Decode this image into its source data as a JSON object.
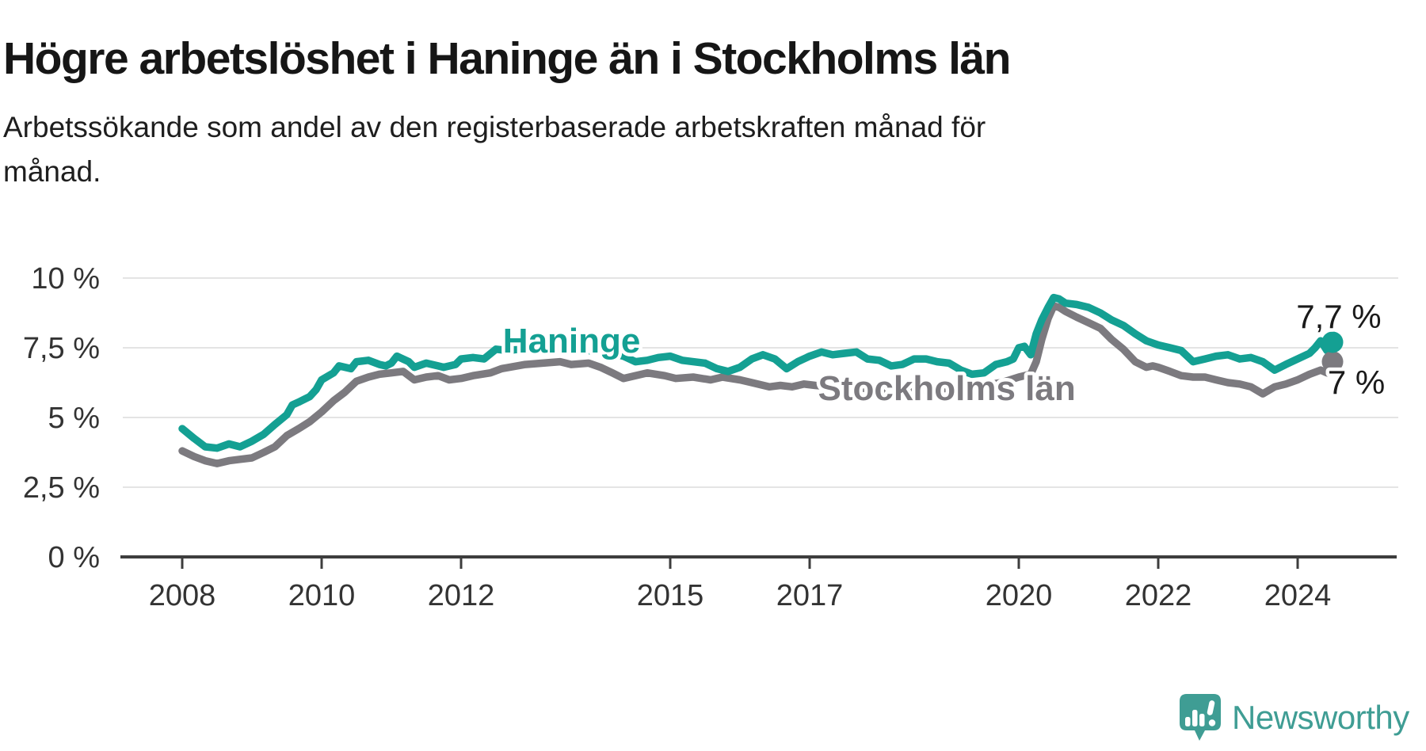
{
  "header": {
    "title": "Högre arbetslöshet i Haninge än i Stockholms län",
    "subtitle_line1": "Arbetssökande som andel av den registerbaserade arbetskraften månad för",
    "subtitle_line2": "månad."
  },
  "branding": {
    "logo_text": "Newsworthy"
  },
  "colors": {
    "haninge": "#14A093",
    "stockholm": "#7C7A7F",
    "annotation": "#1A1A1A",
    "axis": "#3D3D3D",
    "grid": "#E4E4E4",
    "tick_text": "#333333",
    "logo": "#3F9D94"
  },
  "chart_data": {
    "type": "line",
    "title": "Högre arbetslöshet i Haninge än i Stockholms län",
    "subtitle": "Arbetssökande som andel av den registerbaserade arbetskraften månad för månad.",
    "unit": "%",
    "x_axis": {
      "ticks": [
        2008,
        2010,
        2012,
        2015,
        2017,
        2020,
        2022,
        2024
      ],
      "range": [
        2007.1,
        2025.4
      ],
      "grid": false
    },
    "y_axis": {
      "range": [
        0,
        10.5
      ],
      "grid": true,
      "ticks": [
        {
          "value": 0,
          "label": "0 %"
        },
        {
          "value": 2.5,
          "label": "2,5 %"
        },
        {
          "value": 5,
          "label": "5 %"
        },
        {
          "value": 7.5,
          "label": "7,5 %"
        },
        {
          "value": 10,
          "label": "10 %"
        }
      ]
    },
    "legend": "inline-labels",
    "series": [
      {
        "name": "Haninge",
        "color_key": "haninge",
        "end_value_label": "7,7 %",
        "end_value": 7.7,
        "points": [
          [
            2008.0,
            4.6
          ],
          [
            2008.17,
            4.25
          ],
          [
            2008.33,
            3.95
          ],
          [
            2008.5,
            3.9
          ],
          [
            2008.67,
            4.05
          ],
          [
            2008.83,
            3.95
          ],
          [
            2009.0,
            4.15
          ],
          [
            2009.17,
            4.4
          ],
          [
            2009.33,
            4.75
          ],
          [
            2009.5,
            5.1
          ],
          [
            2009.58,
            5.45
          ],
          [
            2009.67,
            5.55
          ],
          [
            2009.83,
            5.75
          ],
          [
            2009.92,
            6.0
          ],
          [
            2010.0,
            6.35
          ],
          [
            2010.17,
            6.6
          ],
          [
            2010.25,
            6.85
          ],
          [
            2010.42,
            6.75
          ],
          [
            2010.5,
            7.0
          ],
          [
            2010.67,
            7.05
          ],
          [
            2010.83,
            6.9
          ],
          [
            2010.92,
            6.85
          ],
          [
            2011.0,
            6.95
          ],
          [
            2011.08,
            7.2
          ],
          [
            2011.25,
            7.0
          ],
          [
            2011.33,
            6.8
          ],
          [
            2011.5,
            6.95
          ],
          [
            2011.67,
            6.85
          ],
          [
            2011.75,
            6.8
          ],
          [
            2011.92,
            6.9
          ],
          [
            2012.0,
            7.1
          ],
          [
            2012.17,
            7.15
          ],
          [
            2012.33,
            7.1
          ],
          [
            2012.5,
            7.45
          ],
          [
            2012.67,
            7.4
          ],
          [
            2012.83,
            7.45
          ],
          [
            2013.0,
            7.4
          ],
          [
            2013.17,
            7.45
          ],
          [
            2013.33,
            7.5
          ],
          [
            2013.5,
            7.5
          ],
          [
            2013.67,
            7.45
          ],
          [
            2013.83,
            7.4
          ],
          [
            2014.0,
            7.35
          ],
          [
            2014.17,
            7.3
          ],
          [
            2014.33,
            7.2
          ],
          [
            2014.5,
            7.0
          ],
          [
            2014.67,
            7.05
          ],
          [
            2014.83,
            7.15
          ],
          [
            2015.0,
            7.2
          ],
          [
            2015.17,
            7.05
          ],
          [
            2015.33,
            7.0
          ],
          [
            2015.5,
            6.95
          ],
          [
            2015.67,
            6.75
          ],
          [
            2015.83,
            6.65
          ],
          [
            2016.0,
            6.8
          ],
          [
            2016.17,
            7.1
          ],
          [
            2016.33,
            7.25
          ],
          [
            2016.5,
            7.1
          ],
          [
            2016.67,
            6.75
          ],
          [
            2016.83,
            7.0
          ],
          [
            2017.0,
            7.2
          ],
          [
            2017.17,
            7.35
          ],
          [
            2017.33,
            7.25
          ],
          [
            2017.5,
            7.3
          ],
          [
            2017.67,
            7.35
          ],
          [
            2017.83,
            7.1
          ],
          [
            2018.0,
            7.05
          ],
          [
            2018.17,
            6.85
          ],
          [
            2018.33,
            6.9
          ],
          [
            2018.5,
            7.1
          ],
          [
            2018.67,
            7.1
          ],
          [
            2018.83,
            7.0
          ],
          [
            2019.0,
            6.95
          ],
          [
            2019.17,
            6.7
          ],
          [
            2019.33,
            6.55
          ],
          [
            2019.5,
            6.6
          ],
          [
            2019.67,
            6.9
          ],
          [
            2019.83,
            7.0
          ],
          [
            2019.92,
            7.1
          ],
          [
            2020.0,
            7.5
          ],
          [
            2020.08,
            7.55
          ],
          [
            2020.17,
            7.25
          ],
          [
            2020.25,
            8.0
          ],
          [
            2020.33,
            8.5
          ],
          [
            2020.42,
            8.95
          ],
          [
            2020.5,
            9.3
          ],
          [
            2020.58,
            9.25
          ],
          [
            2020.67,
            9.1
          ],
          [
            2020.83,
            9.05
          ],
          [
            2021.0,
            8.95
          ],
          [
            2021.17,
            8.75
          ],
          [
            2021.33,
            8.5
          ],
          [
            2021.5,
            8.3
          ],
          [
            2021.67,
            8.0
          ],
          [
            2021.83,
            7.75
          ],
          [
            2022.0,
            7.6
          ],
          [
            2022.17,
            7.5
          ],
          [
            2022.33,
            7.4
          ],
          [
            2022.5,
            7.0
          ],
          [
            2022.67,
            7.1
          ],
          [
            2022.83,
            7.2
          ],
          [
            2023.0,
            7.25
          ],
          [
            2023.17,
            7.1
          ],
          [
            2023.33,
            7.15
          ],
          [
            2023.5,
            7.0
          ],
          [
            2023.67,
            6.7
          ],
          [
            2023.83,
            6.9
          ],
          [
            2024.0,
            7.1
          ],
          [
            2024.17,
            7.3
          ],
          [
            2024.25,
            7.5
          ],
          [
            2024.33,
            7.75
          ],
          [
            2024.42,
            7.4
          ],
          [
            2024.5,
            7.7
          ]
        ]
      },
      {
        "name": "Stockholms län",
        "color_key": "stockholm",
        "end_value_label": "7 %",
        "end_value": 7.0,
        "points": [
          [
            2008.0,
            3.8
          ],
          [
            2008.17,
            3.6
          ],
          [
            2008.33,
            3.45
          ],
          [
            2008.5,
            3.35
          ],
          [
            2008.67,
            3.45
          ],
          [
            2008.83,
            3.5
          ],
          [
            2009.0,
            3.55
          ],
          [
            2009.17,
            3.75
          ],
          [
            2009.33,
            3.95
          ],
          [
            2009.5,
            4.35
          ],
          [
            2009.67,
            4.6
          ],
          [
            2009.83,
            4.85
          ],
          [
            2010.0,
            5.2
          ],
          [
            2010.17,
            5.6
          ],
          [
            2010.33,
            5.9
          ],
          [
            2010.5,
            6.3
          ],
          [
            2010.67,
            6.45
          ],
          [
            2010.83,
            6.55
          ],
          [
            2011.0,
            6.6
          ],
          [
            2011.17,
            6.65
          ],
          [
            2011.33,
            6.35
          ],
          [
            2011.5,
            6.45
          ],
          [
            2011.67,
            6.5
          ],
          [
            2011.83,
            6.35
          ],
          [
            2012.0,
            6.4
          ],
          [
            2012.17,
            6.5
          ],
          [
            2012.42,
            6.6
          ],
          [
            2012.58,
            6.75
          ],
          [
            2012.92,
            6.9
          ],
          [
            2013.17,
            6.95
          ],
          [
            2013.42,
            7.0
          ],
          [
            2013.58,
            6.9
          ],
          [
            2013.83,
            6.95
          ],
          [
            2014.0,
            6.8
          ],
          [
            2014.17,
            6.6
          ],
          [
            2014.33,
            6.4
          ],
          [
            2014.5,
            6.5
          ],
          [
            2014.67,
            6.6
          ],
          [
            2014.92,
            6.5
          ],
          [
            2015.08,
            6.4
          ],
          [
            2015.33,
            6.45
          ],
          [
            2015.58,
            6.35
          ],
          [
            2015.75,
            6.45
          ],
          [
            2016.0,
            6.35
          ],
          [
            2016.17,
            6.25
          ],
          [
            2016.42,
            6.1
          ],
          [
            2016.58,
            6.15
          ],
          [
            2016.75,
            6.1
          ],
          [
            2016.92,
            6.2
          ],
          [
            2017.08,
            6.15
          ],
          [
            2017.33,
            6.1
          ],
          [
            2017.5,
            6.1
          ],
          [
            2017.75,
            6.05
          ],
          [
            2018.0,
            6.0
          ],
          [
            2018.25,
            5.95
          ],
          [
            2018.5,
            6.0
          ],
          [
            2018.75,
            6.0
          ],
          [
            2019.0,
            6.05
          ],
          [
            2019.25,
            6.1
          ],
          [
            2019.5,
            6.15
          ],
          [
            2019.75,
            6.25
          ],
          [
            2020.0,
            6.45
          ],
          [
            2020.17,
            6.55
          ],
          [
            2020.25,
            7.0
          ],
          [
            2020.33,
            7.8
          ],
          [
            2020.42,
            8.55
          ],
          [
            2020.5,
            9.0
          ],
          [
            2020.58,
            8.95
          ],
          [
            2020.67,
            8.8
          ],
          [
            2020.83,
            8.6
          ],
          [
            2021.0,
            8.4
          ],
          [
            2021.17,
            8.2
          ],
          [
            2021.33,
            7.8
          ],
          [
            2021.5,
            7.45
          ],
          [
            2021.67,
            7.0
          ],
          [
            2021.83,
            6.8
          ],
          [
            2021.92,
            6.85
          ],
          [
            2022.0,
            6.8
          ],
          [
            2022.17,
            6.65
          ],
          [
            2022.33,
            6.5
          ],
          [
            2022.5,
            6.45
          ],
          [
            2022.67,
            6.45
          ],
          [
            2022.83,
            6.35
          ],
          [
            2023.0,
            6.25
          ],
          [
            2023.17,
            6.2
          ],
          [
            2023.33,
            6.1
          ],
          [
            2023.5,
            5.85
          ],
          [
            2023.67,
            6.1
          ],
          [
            2023.83,
            6.2
          ],
          [
            2024.0,
            6.35
          ],
          [
            2024.17,
            6.55
          ],
          [
            2024.33,
            6.7
          ],
          [
            2024.42,
            6.6
          ],
          [
            2024.5,
            7.0
          ]
        ]
      }
    ],
    "annotations": [
      {
        "text": "Haninge",
        "x": 2012.6,
        "y": 7.33,
        "color_key": "haninge",
        "bold": true,
        "size": 44,
        "anchor": "start"
      },
      {
        "text": "Stockholms län",
        "x": 2017.12,
        "y": 5.62,
        "color_key": "stockholm",
        "bold": true,
        "size": 44,
        "anchor": "start"
      },
      {
        "text": "7,7 %",
        "x": 2023.98,
        "y": 8.21,
        "color_key": "annotation",
        "bold": false,
        "size": 42,
        "anchor": "start"
      },
      {
        "text": "7 %",
        "x": 2024.43,
        "y": 5.85,
        "color_key": "annotation",
        "bold": false,
        "size": 42,
        "anchor": "start"
      }
    ]
  }
}
